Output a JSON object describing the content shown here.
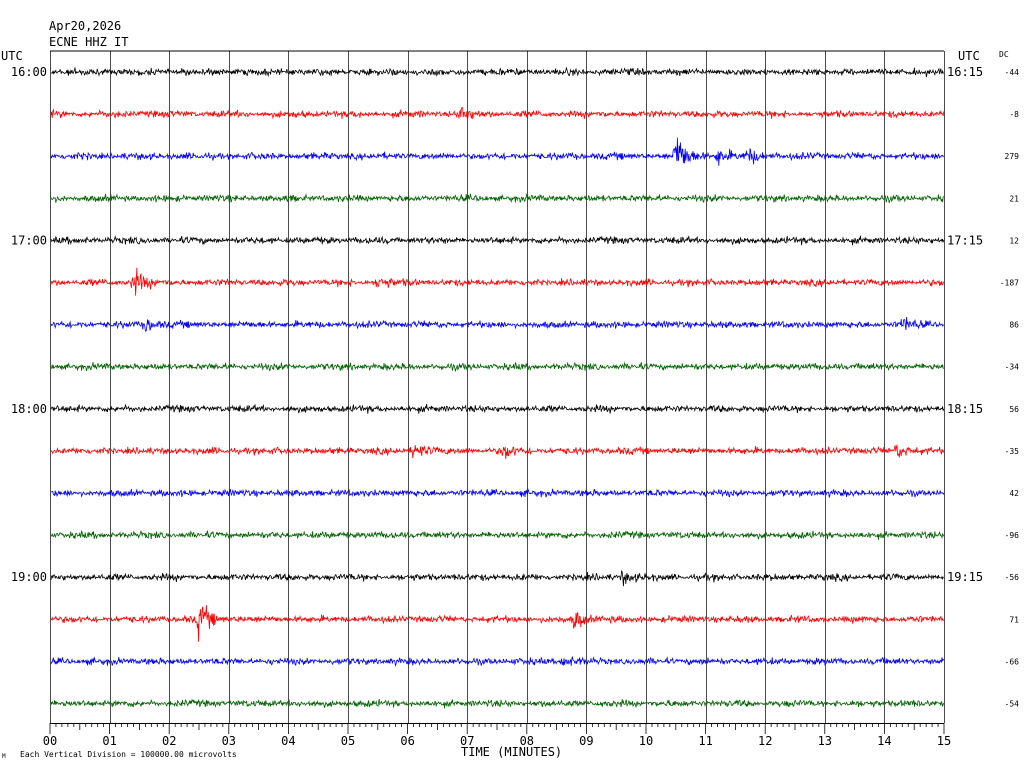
{
  "header": {
    "date": "Apr20,2026",
    "station": "ECNE HHZ IT",
    "utc_left": "UTC",
    "utc_right": "UTC",
    "dc_label": "DC"
  },
  "footer": {
    "xlabel": "TIME (MINUTES)",
    "scale_note": "Each Vertical Division = 100000.00 microvolts",
    "corner_mark": "M"
  },
  "chart_data": {
    "type": "line",
    "xlim": [
      0,
      15
    ],
    "x_ticks": [
      "00",
      "01",
      "02",
      "03",
      "04",
      "05",
      "06",
      "07",
      "08",
      "09",
      "10",
      "11",
      "12",
      "13",
      "14",
      "15"
    ],
    "grid": "vertical every minute",
    "trace_colors": [
      "#000000",
      "#ff0000",
      "#0000ff",
      "#006400"
    ],
    "left_labels": [
      "16:00",
      "",
      "",
      "",
      "17:00",
      "",
      "",
      "",
      "18:00",
      "",
      "",
      "",
      "19:00",
      "",
      "",
      ""
    ],
    "right_labels": [
      "16:15",
      "",
      "",
      "",
      "17:15",
      "",
      "",
      "",
      "18:15",
      "",
      "",
      "",
      "19:15",
      "",
      "",
      ""
    ],
    "dc_offsets": [
      "-44",
      "-8",
      "279",
      "21",
      "12",
      "-187",
      "86",
      "-34",
      "56",
      "-35",
      "42",
      "-96",
      "-56",
      "71",
      "-66",
      "-54"
    ],
    "events": [
      {
        "row": 1,
        "minute": 6.9,
        "amp": 9
      },
      {
        "row": 2,
        "minute": 10.5,
        "amp": 32
      },
      {
        "row": 2,
        "minute": 11.2,
        "amp": 10
      },
      {
        "row": 2,
        "minute": 11.7,
        "amp": 10
      },
      {
        "row": 5,
        "minute": 1.4,
        "amp": 16
      },
      {
        "row": 5,
        "minute": 5.5,
        "amp": 8
      },
      {
        "row": 6,
        "minute": 1.6,
        "amp": 8
      },
      {
        "row": 6,
        "minute": 14.3,
        "amp": 8
      },
      {
        "row": 9,
        "minute": 6.1,
        "amp": 11
      },
      {
        "row": 9,
        "minute": 7.6,
        "amp": 9
      },
      {
        "row": 9,
        "minute": 14.2,
        "amp": 9
      },
      {
        "row": 12,
        "minute": 9.6,
        "amp": 8
      },
      {
        "row": 13,
        "minute": 2.5,
        "amp": 22
      },
      {
        "row": 13,
        "minute": 8.8,
        "amp": 12
      },
      {
        "row": 14,
        "minute": 8.6,
        "amp": 7
      }
    ]
  }
}
